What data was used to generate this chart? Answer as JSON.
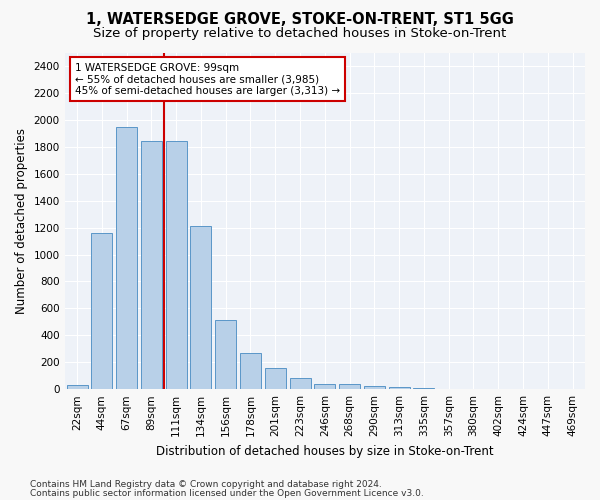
{
  "title_line1": "1, WATERSEDGE GROVE, STOKE-ON-TRENT, ST1 5GG",
  "title_line2": "Size of property relative to detached houses in Stoke-on-Trent",
  "xlabel": "Distribution of detached houses by size in Stoke-on-Trent",
  "ylabel": "Number of detached properties",
  "categories": [
    "22sqm",
    "44sqm",
    "67sqm",
    "89sqm",
    "111sqm",
    "134sqm",
    "156sqm",
    "178sqm",
    "201sqm",
    "223sqm",
    "246sqm",
    "268sqm",
    "290sqm",
    "313sqm",
    "335sqm",
    "357sqm",
    "380sqm",
    "402sqm",
    "424sqm",
    "447sqm",
    "469sqm"
  ],
  "values": [
    30,
    1160,
    1950,
    1840,
    1840,
    1210,
    510,
    265,
    155,
    80,
    35,
    35,
    20,
    15,
    8,
    5,
    5,
    5,
    3,
    2,
    2
  ],
  "bar_color": "#b8d0e8",
  "bar_edge_color": "#5a96c8",
  "marker_color": "#cc0000",
  "annotation_title": "1 WATERSEDGE GROVE: 99sqm",
  "annotation_line1": "← 55% of detached houses are smaller (3,985)",
  "annotation_line2": "45% of semi-detached houses are larger (3,313) →",
  "annotation_box_color": "#cc0000",
  "ylim": [
    0,
    2500
  ],
  "yticks": [
    0,
    200,
    400,
    600,
    800,
    1000,
    1200,
    1400,
    1600,
    1800,
    2000,
    2200,
    2400
  ],
  "footer_line1": "Contains HM Land Registry data © Crown copyright and database right 2024.",
  "footer_line2": "Contains public sector information licensed under the Open Government Licence v3.0.",
  "bg_color": "#eef2f8",
  "grid_color": "#ffffff",
  "fig_bg_color": "#f8f8f8",
  "title_fontsize": 10.5,
  "subtitle_fontsize": 9.5,
  "axis_label_fontsize": 8.5,
  "tick_fontsize": 7.5,
  "annotation_fontsize": 7.5,
  "footer_fontsize": 6.5
}
